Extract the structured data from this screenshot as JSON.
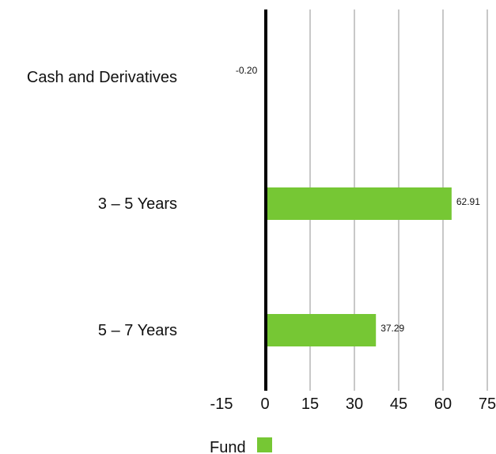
{
  "chart_data": {
    "type": "bar",
    "orientation": "horizontal",
    "categories": [
      "Cash and Derivatives",
      "3 - 5 Years",
      "5 - 7 Years"
    ],
    "series": [
      {
        "name": "Fund",
        "values": [
          -0.2,
          62.91,
          37.29
        ],
        "color": "#76c734"
      }
    ],
    "data_labels": [
      "-0.20",
      "62.91",
      "37.29"
    ],
    "category_labels": [
      "Cash and Derivatives",
      "3 – 5 Years",
      "5 – 7 Years"
    ],
    "xticks": [
      -15,
      0,
      15,
      30,
      45,
      60,
      75
    ],
    "xlim": [
      -15,
      75
    ],
    "grid": true,
    "grid_color": "#c8c8c8",
    "zero_line_color": "#000000",
    "legend": {
      "position": "bottom-left",
      "entries": [
        "Fund"
      ]
    }
  }
}
